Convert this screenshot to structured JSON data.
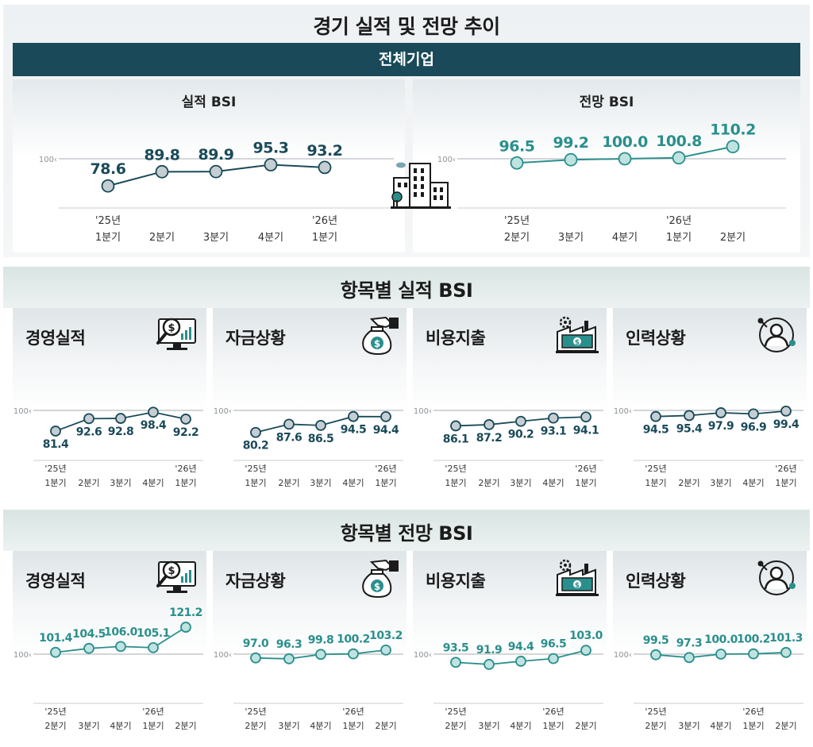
{
  "main_title": "경기 실적 및 전망 추이",
  "banner": "전체기업",
  "top": {
    "actual_title": "실적 BSI",
    "outlook_title": "전망 BSI"
  },
  "sections": {
    "actual_title": "항목별 실적 BSI",
    "outlook_title": "항목별 전망 BSI"
  },
  "item_labels": [
    "경영실적",
    "자금상황",
    "비용지출",
    "인력상황"
  ],
  "item_icons": [
    "magnifier-chart-icon",
    "money-bag-icon",
    "factory-money-icon",
    "person-network-icon"
  ],
  "colors": {
    "actual_line": "#1a4a59",
    "actual_marker": "#c5ced3",
    "outlook_line": "#2a8f8c",
    "outlook_marker": "#bfe3e0",
    "banner": "#1a4a59"
  },
  "chart_data": [
    {
      "type": "line",
      "title": "실적 BSI",
      "reference_line": 100,
      "categories": [
        "'25년 1분기",
        "2분기",
        "3분기",
        "4분기",
        "'26년 1분기"
      ],
      "cat_top": [
        "'25년",
        "",
        "",
        "",
        "'26년"
      ],
      "cat_bottom": [
        "1분기",
        "2분기",
        "3분기",
        "4분기",
        "1분기"
      ],
      "values": [
        78.6,
        89.8,
        89.9,
        95.3,
        93.2
      ],
      "labels": [
        "78.6",
        "89.8",
        "89.9",
        "95.3",
        "93.2"
      ],
      "ylim": [
        70,
        115
      ]
    },
    {
      "type": "line",
      "title": "전망 BSI",
      "reference_line": 100,
      "categories": [
        "'25년 2분기",
        "3분기",
        "4분기",
        "'26년 1분기",
        "2분기"
      ],
      "cat_top": [
        "'25년",
        "",
        "",
        "'26년",
        ""
      ],
      "cat_bottom": [
        "2분기",
        "3분기",
        "4분기",
        "1분기",
        "2분기"
      ],
      "values": [
        96.5,
        99.2,
        100.0,
        100.8,
        110.2
      ],
      "labels": [
        "96.5",
        "99.2",
        "100.0",
        "100.8",
        "110.2"
      ],
      "ylim": [
        70,
        115
      ]
    },
    {
      "type": "line",
      "group": "항목별 실적 BSI",
      "title": "경영실적",
      "reference_line": 100,
      "cat_top": [
        "'25년",
        "",
        "",
        "",
        "'26년"
      ],
      "cat_bottom": [
        "1분기",
        "2분기",
        "3분기",
        "4분기",
        "1분기"
      ],
      "values": [
        81.4,
        92.6,
        92.8,
        98.4,
        92.2
      ],
      "labels": [
        "81.4",
        "92.6",
        "92.8",
        "98.4",
        "92.2"
      ]
    },
    {
      "type": "line",
      "group": "항목별 실적 BSI",
      "title": "자금상황",
      "reference_line": 100,
      "cat_top": [
        "'25년",
        "",
        "",
        "",
        "'26년"
      ],
      "cat_bottom": [
        "1분기",
        "2분기",
        "3분기",
        "4분기",
        "1분기"
      ],
      "values": [
        80.2,
        87.6,
        86.5,
        94.5,
        94.4
      ],
      "labels": [
        "80.2",
        "87.6",
        "86.5",
        "94.5",
        "94.4"
      ]
    },
    {
      "type": "line",
      "group": "항목별 실적 BSI",
      "title": "비용지출",
      "reference_line": 100,
      "cat_top": [
        "'25년",
        "",
        "",
        "",
        "'26년"
      ],
      "cat_bottom": [
        "1분기",
        "2분기",
        "3분기",
        "4분기",
        "1분기"
      ],
      "values": [
        86.1,
        87.2,
        90.2,
        93.1,
        94.1
      ],
      "labels": [
        "86.1",
        "87.2",
        "90.2",
        "93.1",
        "94.1"
      ]
    },
    {
      "type": "line",
      "group": "항목별 실적 BSI",
      "title": "인력상황",
      "reference_line": 100,
      "cat_top": [
        "'25년",
        "",
        "",
        "",
        "'26년"
      ],
      "cat_bottom": [
        "1분기",
        "2분기",
        "3분기",
        "4분기",
        "1분기"
      ],
      "values": [
        94.5,
        95.4,
        97.9,
        96.9,
        99.4
      ],
      "labels": [
        "94.5",
        "95.4",
        "97.9",
        "96.9",
        "99.4"
      ]
    },
    {
      "type": "line",
      "group": "항목별 전망 BSI",
      "title": "경영실적",
      "reference_line": 100,
      "cat_top": [
        "'25년",
        "",
        "",
        "'26년",
        ""
      ],
      "cat_bottom": [
        "2분기",
        "3분기",
        "4분기",
        "1분기",
        "2분기"
      ],
      "values": [
        101.4,
        104.5,
        106.0,
        105.1,
        121.2
      ],
      "labels": [
        "101.4",
        "104.5",
        "106.0",
        "105.1",
        "121.2"
      ]
    },
    {
      "type": "line",
      "group": "항목별 전망 BSI",
      "title": "자금상황",
      "reference_line": 100,
      "cat_top": [
        "'25년",
        "",
        "",
        "'26년",
        ""
      ],
      "cat_bottom": [
        "2분기",
        "3분기",
        "4분기",
        "1분기",
        "2분기"
      ],
      "values": [
        97.0,
        96.3,
        99.8,
        100.2,
        103.2
      ],
      "labels": [
        "97.0",
        "96.3",
        "99.8",
        "100.2",
        "103.2"
      ]
    },
    {
      "type": "line",
      "group": "항목별 전망 BSI",
      "title": "비용지출",
      "reference_line": 100,
      "cat_top": [
        "'25년",
        "",
        "",
        "'26년",
        ""
      ],
      "cat_bottom": [
        "2분기",
        "3분기",
        "4분기",
        "1분기",
        "2분기"
      ],
      "values": [
        93.5,
        91.9,
        94.4,
        96.5,
        103.0
      ],
      "labels": [
        "93.5",
        "91.9",
        "94.4",
        "96.5",
        "103.0"
      ]
    },
    {
      "type": "line",
      "group": "항목별 전망 BSI",
      "title": "인력상황",
      "reference_line": 100,
      "cat_top": [
        "'25년",
        "",
        "",
        "'26년",
        ""
      ],
      "cat_bottom": [
        "2분기",
        "3분기",
        "4분기",
        "1분기",
        "2분기"
      ],
      "values": [
        99.5,
        97.3,
        100.0,
        100.2,
        101.3
      ],
      "labels": [
        "99.5",
        "97.3",
        "100.0",
        "100.2",
        "101.3"
      ]
    }
  ]
}
